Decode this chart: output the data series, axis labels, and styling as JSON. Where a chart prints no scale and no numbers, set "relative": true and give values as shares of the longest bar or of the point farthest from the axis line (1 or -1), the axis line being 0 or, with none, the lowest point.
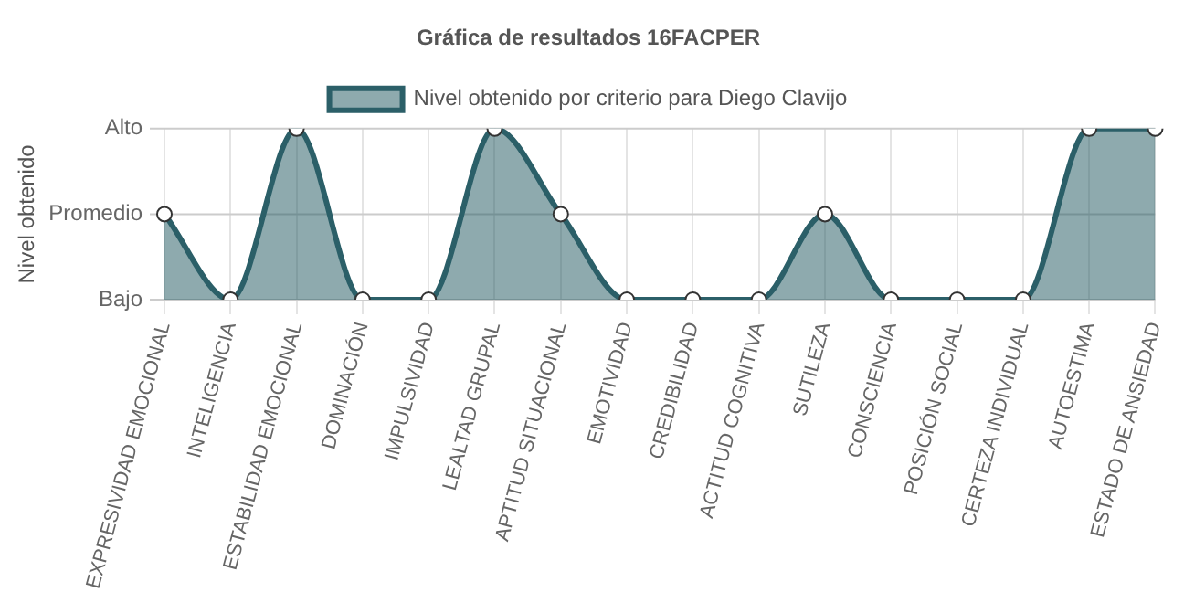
{
  "chart_data": {
    "type": "area",
    "title": "Gráfica de resultados 16FACPER",
    "ylabel": "Nivel obtenido",
    "relative": true,
    "categories": [
      "EXPRESIVIDAD EMOCIONAL",
      "INTELIGENCIA",
      "ESTABILIDAD EMOCIONAL",
      "DOMINACIÓN",
      "IMPULSIVIDAD",
      "LEALTAD GRUPAL",
      "APTITUD SITUACIONAL",
      "EMOTIVIDAD",
      "CREDIBILIDAD",
      "ACTITUD COGNITIVA",
      "SUTILEZA",
      "CONSCIENCIA",
      "POSICIÓN SOCIAL",
      "CERTEZA INDIVIDUAL",
      "AUTOESTIMA",
      "ESTADO DE ANSIEDAD"
    ],
    "series": [
      {
        "name": "Nivel obtenido por criterio para Diego Clavijo",
        "color": "#2b5f68",
        "values": [
          0.5,
          0,
          1,
          0,
          0,
          1,
          0.5,
          0,
          0,
          0,
          0.5,
          0,
          0,
          0,
          1,
          1
        ]
      }
    ],
    "ref_lines": [
      {
        "axis": "y",
        "value": 0,
        "label": "Bajo",
        "color": "#cccccc"
      },
      {
        "axis": "y",
        "value": 0.5,
        "label": "Promedio",
        "color": "#cccccc"
      },
      {
        "axis": "y",
        "value": 1,
        "label": "Alto",
        "color": "#cccccc"
      }
    ],
    "grid": "x",
    "legend": "top",
    "marker": "circle"
  }
}
